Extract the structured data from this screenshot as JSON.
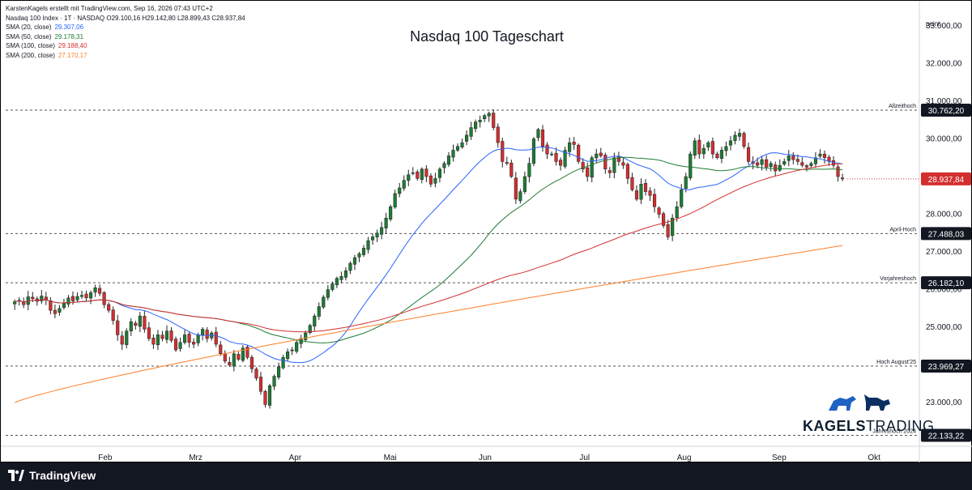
{
  "header": {
    "line1": "KarstenKagels erstellt mit TradingView.com, Sep 16, 2026 07:43 UTC+2",
    "line2": "Nasdaq 100 Index · 1T · NASDAQ  O29.100,16  H29.142,80  L28.899,43  C28.937,84",
    "indicators": [
      {
        "label": "SMA (20, close)",
        "value": "29.307,06",
        "color": "#2962ff"
      },
      {
        "label": "SMA (50, close)",
        "value": "29.178,31",
        "color": "#1e7b34"
      },
      {
        "label": "SMA (100, close)",
        "value": "29.188,40",
        "color": "#d32f2f"
      },
      {
        "label": "SMA (200, close)",
        "value": "27.170,17",
        "color": "#ff7f27"
      }
    ]
  },
  "footer": {
    "logo_text": "TradingView"
  },
  "brand": {
    "name_bold": "KAGELS",
    "name_thin": "TRADING"
  },
  "chart_data": {
    "type": "candlestick",
    "title": "Nasdaq 100 Tageschart",
    "y_unit": "point",
    "ylim": [
      21950,
      33450
    ],
    "y_ticks": [
      {
        "value": 23000,
        "label": "23.000,00"
      },
      {
        "value": 24000,
        "label": "24.000,00"
      },
      {
        "value": 25000,
        "label": "25.000,00"
      },
      {
        "value": 26000,
        "label": "26.000,00"
      },
      {
        "value": 27000,
        "label": "27.000,00"
      },
      {
        "value": 28000,
        "label": "28.000,00"
      },
      {
        "value": 29000,
        "label": "29.000,00"
      },
      {
        "value": 30000,
        "label": "30.000,00"
      },
      {
        "value": 31000,
        "label": "31.000,00"
      },
      {
        "value": 32000,
        "label": "32.000,00"
      },
      {
        "value": 33000,
        "label": "33.000,00"
      }
    ],
    "x_labels": [
      "Feb",
      "Mrz",
      "Apr",
      "Mai",
      "Jun",
      "Jul",
      "Aug",
      "Sep",
      "Okt"
    ],
    "x_label_days": [
      20,
      40,
      62,
      83,
      104,
      126,
      148,
      169,
      190
    ],
    "last_day": 183,
    "horizontal_levels": [
      {
        "name": "Allzeithoch",
        "value": 30762.2,
        "label": "30.762,20"
      },
      {
        "name": "April-Hoch",
        "value": 27488.03,
        "label": "27.488,03"
      },
      {
        "name": "Vorjahreshoch",
        "value": 26182.1,
        "label": "26.182,10"
      },
      {
        "name": "Hoch August'25",
        "value": 23969.27,
        "label": "23.969,27"
      },
      {
        "name": "Jahreshoch 2024",
        "value": 22133.22,
        "label": "22.133,22"
      }
    ],
    "current_price": {
      "value": 28937.84,
      "label": "28.937,84"
    },
    "closes": [
      25680,
      25720,
      25600,
      25810,
      25760,
      25690,
      25830,
      25720,
      25450,
      25360,
      25500,
      25640,
      25780,
      25700,
      25820,
      25850,
      25780,
      25920,
      26050,
      25900,
      25600,
      25450,
      25180,
      24800,
      24550,
      24900,
      25150,
      25050,
      25300,
      24950,
      24700,
      24550,
      24800,
      24700,
      24900,
      24650,
      24400,
      24600,
      24800,
      24600,
      24550,
      24800,
      24950,
      24700,
      24850,
      24550,
      24300,
      24100,
      24000,
      24300,
      24150,
      24450,
      24200,
      23900,
      23650,
      23300,
      22950,
      23450,
      23700,
      23950,
      24200,
      24350,
      24400,
      24600,
      24700,
      24850,
      25050,
      25300,
      25550,
      25800,
      26000,
      26150,
      26300,
      26350,
      26500,
      26700,
      26850,
      26950,
      27100,
      27300,
      27400,
      27500,
      27650,
      27900,
      28200,
      28550,
      28700,
      28900,
      29050,
      29100,
      28950,
      29200,
      29000,
      28800,
      28950,
      29200,
      29350,
      29550,
      29700,
      29800,
      29900,
      30100,
      30300,
      30450,
      30500,
      30620,
      30680,
      30300,
      29900,
      29400,
      29350,
      29000,
      28400,
      28600,
      29000,
      29350,
      30000,
      30250,
      29800,
      29600,
      29600,
      29400,
      29300,
      29700,
      29900,
      29850,
      29400,
      29200,
      29000,
      29500,
      29600,
      29550,
      29200,
      29100,
      29500,
      29400,
      29300,
      28950,
      28650,
      28400,
      28800,
      28600,
      28500,
      28200,
      28000,
      27700,
      27400,
      27900,
      28200,
      28650,
      29000,
      29600,
      29950,
      29600,
      29750,
      29900,
      29600,
      29500,
      29700,
      29800,
      29950,
      30100,
      30150,
      29800,
      29400,
      29350,
      29300,
      29450,
      29250,
      29350,
      29150,
      29300,
      29400,
      29550,
      29450,
      29400,
      29300,
      29250,
      29350,
      29500,
      29600,
      29500,
      29400,
      29300,
      29000,
      28938
    ]
  }
}
